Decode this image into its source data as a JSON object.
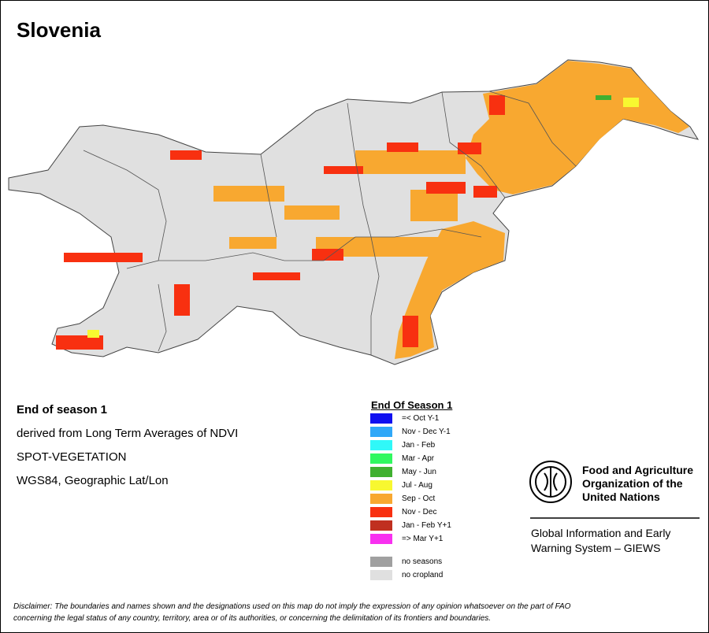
{
  "header": {
    "title": "Slovenia"
  },
  "info": {
    "heading": "End of season 1",
    "lines": [
      "derived from Long Term Averages of NDVI",
      "SPOT-VEGETATION",
      "WGS84, Geographic Lat/Lon"
    ]
  },
  "legend": {
    "title": "End Of Season 1",
    "items": [
      {
        "label": "=< Oct Y-1",
        "color": "#1010f0"
      },
      {
        "label": "Nov - Dec Y-1",
        "color": "#30a8f8"
      },
      {
        "label": "Jan - Feb",
        "color": "#30f8f8"
      },
      {
        "label": "Mar - Apr",
        "color": "#30f860"
      },
      {
        "label": "May - Jun",
        "color": "#40b030"
      },
      {
        "label": "Jul - Aug",
        "color": "#f8f830"
      },
      {
        "label": "Sep - Oct",
        "color": "#f8a830"
      },
      {
        "label": "Nov - Dec",
        "color": "#f83010"
      },
      {
        "label": "Jan - Feb Y+1",
        "color": "#c03020"
      },
      {
        "label": "=> Mar Y+1",
        "color": "#f830f0"
      }
    ],
    "extra": [
      {
        "label": "no seasons",
        "color": "#a0a0a0"
      },
      {
        "label": "no cropland",
        "color": "#e0e0e0"
      }
    ]
  },
  "org": {
    "name": [
      "Food and Agriculture",
      "Organization of the",
      "United Nations"
    ],
    "system": [
      "Global Information and Early",
      "Warning System – GIEWS"
    ]
  },
  "disclaimer": [
    "Disclaimer: The boundaries and names shown and the designations used on this map do not imply the expression of any opinion whatsoever on the part of FAO",
    "concerning the legal status of any country, territory, area or of its authorities, or concerning the delimitation of its frontiers and boundaries."
  ]
}
